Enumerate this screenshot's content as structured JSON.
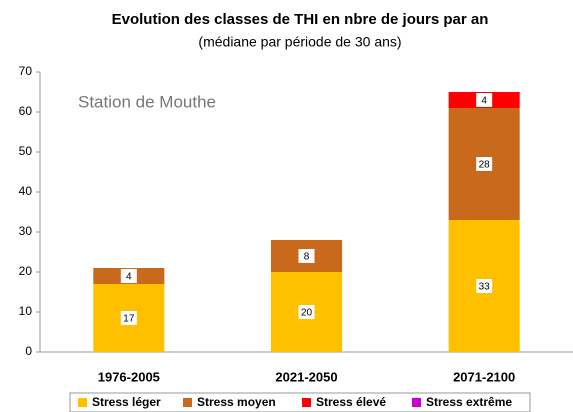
{
  "chart_data": {
    "type": "stacked_bar",
    "title": "Evolution des classes de THI en nbre de jours par an",
    "subtitle": "(médiane par période de 30 ans)",
    "annotation": "Station de Mouthe",
    "categories": [
      "1976-2005",
      "2021-2050",
      "2071-2100"
    ],
    "series": [
      {
        "name": "Stress léger",
        "color": "#ffc000",
        "values": [
          17,
          20,
          33
        ]
      },
      {
        "name": "Stress moyen",
        "color": "#c8691c",
        "values": [
          4,
          8,
          28
        ]
      },
      {
        "name": "Stress élevé",
        "color": "#ff0000",
        "values": [
          null,
          null,
          4
        ]
      },
      {
        "name": "Stress extrême",
        "color": "#cc00cc",
        "values": [
          null,
          null,
          null
        ]
      }
    ],
    "ylim": [
      0,
      70
    ],
    "yticks": [
      0,
      10,
      20,
      30,
      40,
      50,
      60,
      70
    ],
    "grid": false,
    "legend": "bottom"
  }
}
